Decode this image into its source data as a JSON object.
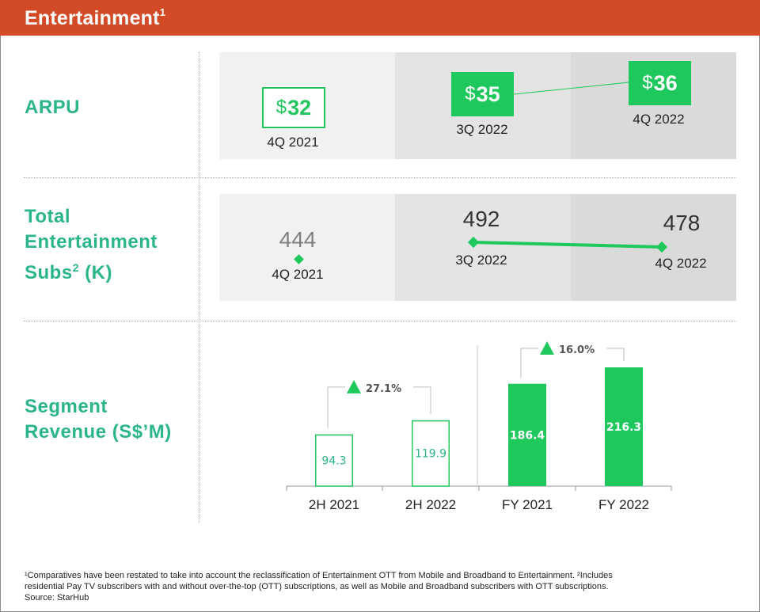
{
  "header": {
    "title": "Entertainment",
    "title_sup": "1"
  },
  "arpu": {
    "label": "ARPU",
    "cur": "$",
    "items": [
      {
        "period": "4Q 2021",
        "value": "32"
      },
      {
        "period": "3Q 2022",
        "value": "35"
      },
      {
        "period": "4Q 2022",
        "value": "36"
      }
    ]
  },
  "subs": {
    "label_line1": "Total",
    "label_line2": "Entertainment",
    "label_line3": "Subs",
    "label_sup": "2",
    "label_unit": " (K)",
    "items": [
      {
        "period": "4Q 2021",
        "value": "444"
      },
      {
        "period": "3Q 2022",
        "value": "492"
      },
      {
        "period": "4Q 2022",
        "value": "478"
      }
    ]
  },
  "revenue": {
    "label_line1": "Segment",
    "label_line2": "Revenue (S$’M)"
  },
  "chart_data": {
    "type": "bar",
    "categories": [
      "2H 2021",
      "2H 2022",
      "FY 2021",
      "FY 2022"
    ],
    "values": [
      94.3,
      119.9,
      186.4,
      216.3
    ],
    "value_labels": [
      "94.3",
      "119.9",
      "186.4",
      "216.3"
    ],
    "styles": [
      "outline",
      "outline",
      "filled",
      "filled"
    ],
    "annotations": [
      {
        "text": "27.1%",
        "from": "2H 2021",
        "to": "2H 2022"
      },
      {
        "text": "16.0%",
        "from": "FY 2021",
        "to": "FY 2022"
      }
    ],
    "title": "",
    "xlabel": "",
    "ylabel": "",
    "ylim": [
      0,
      230
    ],
    "grid": false,
    "colors": {
      "bar": "#1fc85c",
      "outline": "#22c55e",
      "label": "#2bb58a"
    }
  },
  "footnote": {
    "line1": "¹Comparatives have been restated to take into account the reclassification of Entertainment OTT from Mobile and Broadband to Entertainment. ²Includes",
    "line2": "residential Pay TV subscribers with and without over-the-top (OTT) subscriptions, as well as Mobile and Broadband subscribers with OTT subscriptions.",
    "line3": "Source: StarHub"
  }
}
